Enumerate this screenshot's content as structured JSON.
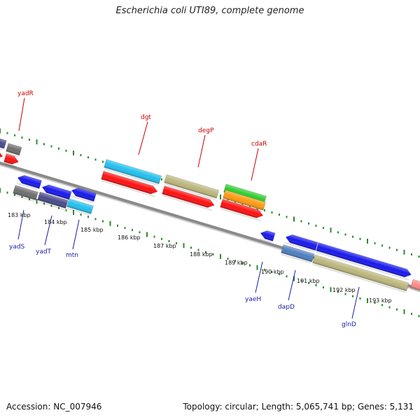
{
  "title": "Escherichia coli UTI89, complete genome",
  "footer": {
    "accession": "Accession: NC_007946",
    "topology": "Topology: circular; Length: 5,065,741 bp; Genes: 5,131"
  },
  "colors": {
    "backbone": "#8a8a8a",
    "tick": "#2a8a2a",
    "top_label": "#cc0000",
    "bottom_label": "#1a1aaa"
  },
  "scale_labels": [
    "183 kbp",
    "184 kbp",
    "185 kbp",
    "186 kbp",
    "187 kbp",
    "188 kbp",
    "189 kbp",
    "190 kbp",
    "191 kbp",
    "192 kbp",
    "193 kbp"
  ],
  "gene_labels": {
    "top": [
      "yadR",
      "dgt",
      "degP",
      "cdaR"
    ],
    "bottom": [
      "yadS",
      "yadT",
      "mtn",
      "yaeH",
      "dapD",
      "glnD"
    ]
  }
}
